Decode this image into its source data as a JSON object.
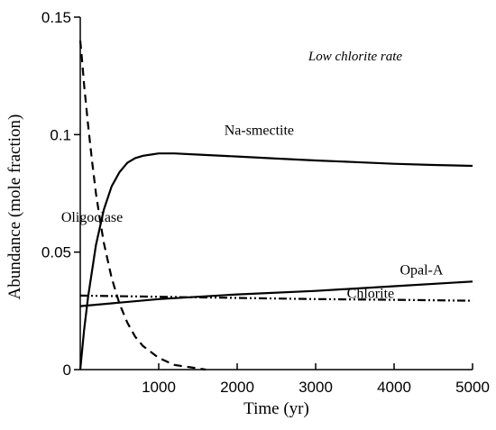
{
  "chart_data": {
    "type": "line",
    "title": "",
    "xlabel": "Time (yr)",
    "ylabel": "Abundance (mole fraction)",
    "xlim": [
      0,
      5000
    ],
    "ylim": [
      0,
      0.15
    ],
    "grid": false,
    "legend": "none",
    "x_ticks": [
      {
        "value": 1000,
        "label": "1000"
      },
      {
        "value": 2000,
        "label": "2000"
      },
      {
        "value": 3000,
        "label": "3000"
      },
      {
        "value": 4000,
        "label": "4000"
      },
      {
        "value": 5000,
        "label": "5000"
      }
    ],
    "y_ticks": [
      {
        "value": 0,
        "label": "0"
      },
      {
        "value": 0.05,
        "label": "0.05"
      },
      {
        "value": 0.1,
        "label": "0.1"
      },
      {
        "value": 0.15,
        "label": "0.15"
      }
    ],
    "annotation": "Low chlorite rate",
    "series": [
      {
        "name": "Na-smectite",
        "style": "solid",
        "label_at": [
          2280,
          0.1
        ],
        "x": [
          0,
          50,
          100,
          200,
          300,
          400,
          500,
          600,
          700,
          800,
          900,
          1000,
          1100,
          1200,
          1500,
          2000,
          2500,
          3000,
          3500,
          4000,
          4500,
          5000
        ],
        "y": [
          0,
          0.017,
          0.031,
          0.053,
          0.068,
          0.078,
          0.084,
          0.088,
          0.09,
          0.091,
          0.0915,
          0.092,
          0.092,
          0.092,
          0.0915,
          0.0907,
          0.0898,
          0.089,
          0.0883,
          0.0876,
          0.0871,
          0.0867
        ]
      },
      {
        "name": "Oligoclase",
        "style": "dashed",
        "label_at": [
          150,
          0.063
        ],
        "x": [
          0,
          20,
          50,
          100,
          150,
          200,
          250,
          300,
          400,
          500,
          600,
          700,
          800,
          1000,
          1200,
          1400,
          1600
        ],
        "y": [
          0.14,
          0.133,
          0.121,
          0.104,
          0.089,
          0.075,
          0.064,
          0.054,
          0.039,
          0.028,
          0.02,
          0.014,
          0.01,
          0.005,
          0.002,
          0.001,
          0
        ]
      },
      {
        "name": "Opal-A",
        "style": "solid",
        "label_at": [
          4350,
          0.0405
        ],
        "x": [
          0,
          1000,
          2000,
          3000,
          4000,
          5000
        ],
        "y": [
          0.027,
          0.03,
          0.032,
          0.0335,
          0.0355,
          0.0375
        ]
      },
      {
        "name": "Chlorite",
        "style": "dashdotdot",
        "label_at": [
          3700,
          0.0305
        ],
        "x": [
          0,
          1000,
          2000,
          3000,
          4000,
          5000
        ],
        "y": [
          0.0315,
          0.031,
          0.0305,
          0.03,
          0.0297,
          0.0293
        ]
      }
    ]
  }
}
